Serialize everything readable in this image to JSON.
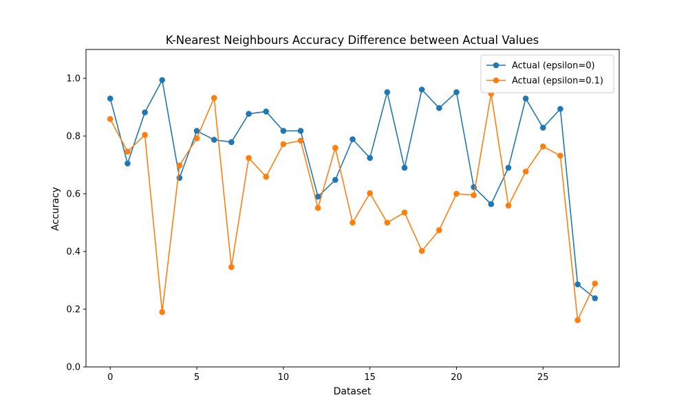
{
  "chart_data": {
    "type": "line",
    "title": "K-Nearest Neighbours Accuracy Difference between Actual Values",
    "xlabel": "Dataset",
    "ylabel": "Accuracy",
    "xlim": [
      -1.4,
      29.4
    ],
    "ylim": [
      0.0,
      1.1
    ],
    "xticks": [
      0,
      5,
      10,
      15,
      20,
      25
    ],
    "yticks": [
      0.0,
      0.2,
      0.4,
      0.6,
      0.8,
      1.0
    ],
    "grid": false,
    "legend_position": "top-right",
    "x": [
      0,
      1,
      2,
      3,
      4,
      5,
      6,
      7,
      8,
      9,
      10,
      11,
      12,
      13,
      14,
      15,
      16,
      17,
      18,
      19,
      20,
      21,
      22,
      23,
      24,
      25,
      26,
      27,
      28
    ],
    "series": [
      {
        "name": "Actual (epsilon=0)",
        "color": "#1f77b4",
        "values": [
          0.93,
          0.705,
          0.882,
          0.994,
          0.655,
          0.818,
          0.787,
          0.779,
          0.877,
          0.885,
          0.818,
          0.818,
          0.59,
          0.648,
          0.789,
          0.724,
          0.952,
          0.69,
          0.961,
          0.897,
          0.952,
          0.623,
          0.564,
          0.69,
          0.93,
          0.829,
          0.894,
          0.286,
          0.238
        ]
      },
      {
        "name": "Actual (epsilon=0.1)",
        "color": "#ff7f0e",
        "values": [
          0.859,
          0.746,
          0.804,
          0.19,
          0.698,
          0.792,
          0.932,
          0.346,
          0.724,
          0.659,
          0.772,
          0.784,
          0.551,
          0.759,
          0.5,
          0.602,
          0.5,
          0.535,
          0.402,
          0.474,
          0.6,
          0.595,
          0.947,
          0.559,
          0.677,
          0.764,
          0.732,
          0.162,
          0.289
        ]
      }
    ]
  }
}
